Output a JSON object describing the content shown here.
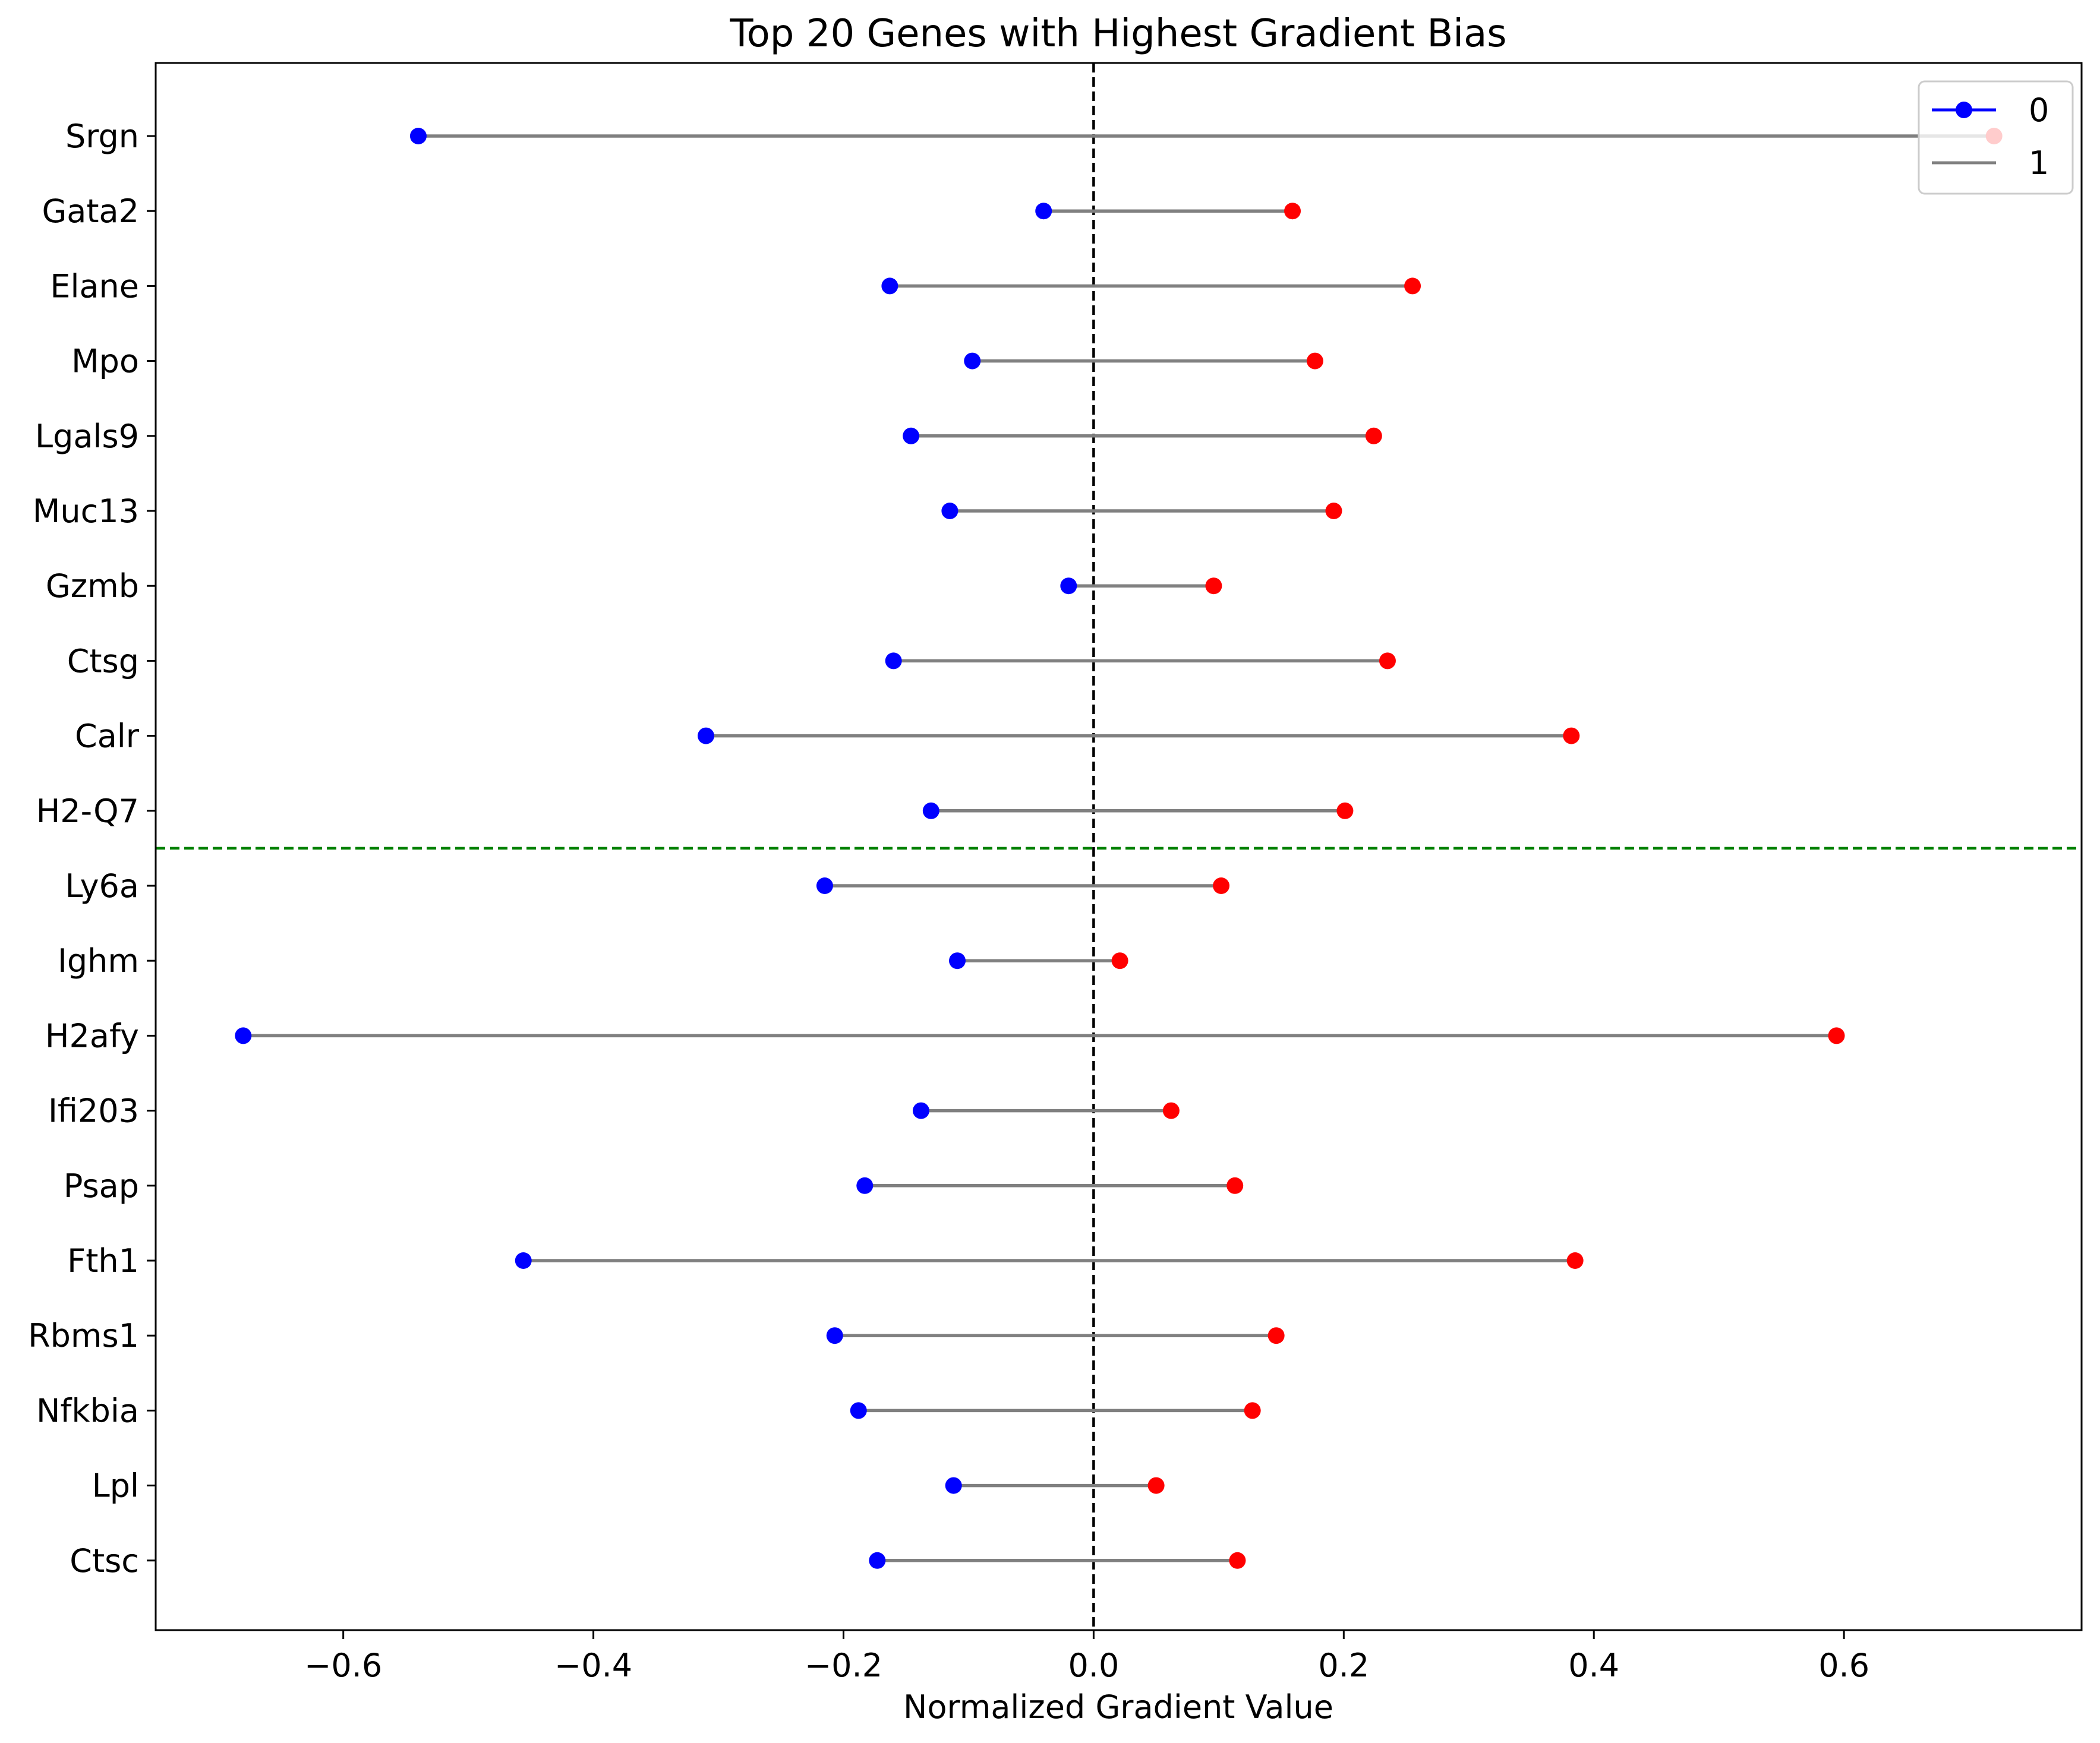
{
  "chart_data": {
    "type": "dumbbell",
    "title": "Top 20 Genes with Highest Gradient Bias",
    "xlabel": "Normalized Gradient Value",
    "ylabel": "",
    "xlim": [
      -0.75,
      0.79
    ],
    "xticks": [
      -0.6,
      -0.4,
      -0.2,
      0.0,
      0.2,
      0.4,
      0.6
    ],
    "xtick_labels": [
      "−0.6",
      "−0.4",
      "−0.2",
      "0.0",
      "0.2",
      "0.4",
      "0.6"
    ],
    "categories": [
      "Srgn",
      "Gata2",
      "Elane",
      "Mpo",
      "Lgals9",
      "Muc13",
      "Gzmb",
      "Ctsg",
      "Calr",
      "H2-Q7",
      "Ly6a",
      "Ighm",
      "H2afy",
      "Ifi203",
      "Psap",
      "Fth1",
      "Rbms1",
      "Nfkbia",
      "Lpl",
      "Ctsc"
    ],
    "series": [
      {
        "name": "0",
        "color": "#0000ff",
        "values": [
          -0.54,
          -0.04,
          -0.163,
          -0.097,
          -0.146,
          -0.115,
          -0.02,
          -0.16,
          -0.31,
          -0.13,
          -0.215,
          -0.109,
          -0.68,
          -0.138,
          -0.183,
          -0.456,
          -0.207,
          -0.188,
          -0.112,
          -0.173
        ]
      },
      {
        "name": "",
        "color": "#ff0000",
        "values": [
          0.72,
          0.159,
          0.255,
          0.177,
          0.224,
          0.192,
          0.096,
          0.235,
          0.382,
          0.201,
          0.102,
          0.021,
          0.594,
          0.062,
          0.113,
          0.385,
          0.146,
          0.127,
          0.05,
          0.115
        ]
      }
    ],
    "connector_color": "#808080",
    "reference_lines": [
      {
        "orientation": "vertical",
        "at": 0.0,
        "style": "dashed",
        "color": "#000000"
      },
      {
        "orientation": "horizontal",
        "between": [
          "H2-Q7",
          "Ly6a"
        ],
        "style": "dashed",
        "color": "#008000"
      }
    ],
    "legend": {
      "placement": "top-right",
      "entries": [
        {
          "label": "0",
          "kind": "line-marker",
          "color": "#0000ff"
        },
        {
          "label": "1",
          "kind": "line",
          "color": "#808080"
        }
      ]
    },
    "grid": false
  }
}
